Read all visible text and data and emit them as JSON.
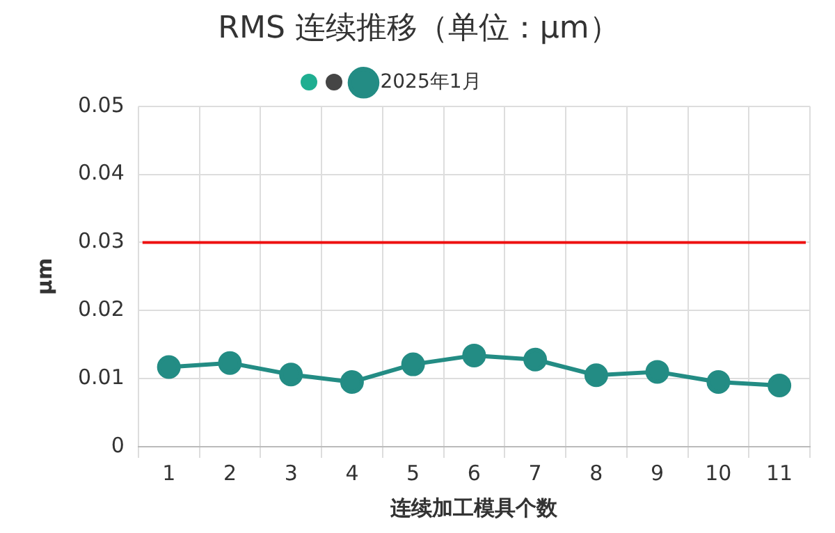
{
  "chart_data": {
    "type": "line",
    "title": "RMS 连续推移（单位：μm）",
    "xlabel": "连续加工模具个数",
    "ylabel": "μm",
    "categories": [
      "1",
      "2",
      "3",
      "4",
      "5",
      "6",
      "7",
      "8",
      "9",
      "10",
      "11"
    ],
    "series": [
      {
        "name": "2025年1月",
        "color": "#238c84",
        "values": [
          0.0117,
          0.0123,
          0.0106,
          0.0095,
          0.0121,
          0.0134,
          0.0128,
          0.0105,
          0.011,
          0.0095,
          0.009
        ]
      }
    ],
    "ylim": [
      0,
      0.05
    ],
    "yticks": [
      0,
      0.01,
      0.02,
      0.03,
      0.04,
      0.05
    ],
    "ref_lines": [
      {
        "axis": "y",
        "value": 0.03,
        "color": "#ee1111"
      }
    ],
    "grid": true,
    "legend": "top",
    "marker": "circle",
    "line_style": "solid"
  }
}
